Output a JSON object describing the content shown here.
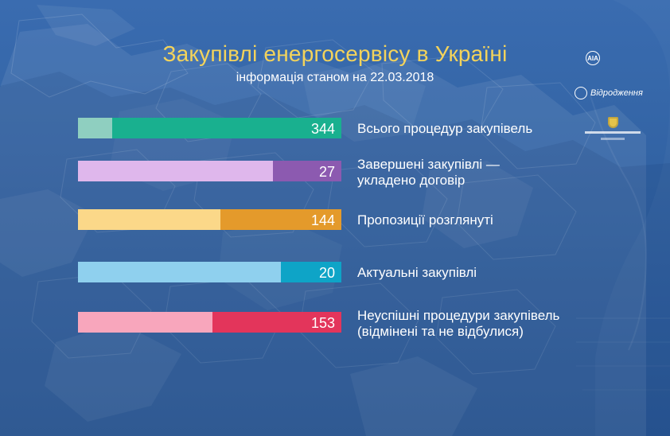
{
  "title": "Закупівлі енергосервісу в Україні",
  "subtitle": "інформація станом на 22.03.2018",
  "colors": {
    "background": "#2f5f9f",
    "title": "#f3d35b",
    "text": "#ffffff"
  },
  "chart_data": {
    "type": "bar",
    "orientation": "horizontal",
    "title": "Закупівлі енергосервісу в Україні",
    "xlabel": "",
    "ylabel": "",
    "xlim": [
      0,
      344
    ],
    "grid": false,
    "legend": "none",
    "categories": [
      [
        "Всього процедур закупівель"
      ],
      [
        "Завершені закупівлі —",
        "укладено договір"
      ],
      [
        "Пропозиції розглянуті"
      ],
      [
        "Актуальні закупівлі"
      ],
      [
        "Неуспішні процедури закупівель",
        "(відмінені та не відбулися)"
      ]
    ],
    "values": [
      344,
      27,
      144,
      20,
      153
    ],
    "colors": [
      {
        "main": "#19b08f",
        "light": "#8fcfc0"
      },
      {
        "main": "#8c5ab0",
        "light": "#dfb7ec"
      },
      {
        "main": "#e49a2b",
        "light": "#fbd889"
      },
      {
        "main": "#0ea4c7",
        "light": "#8fd0ee"
      },
      {
        "main": "#e3355b",
        "light": "#f8a6bc"
      }
    ]
  },
  "logos": {
    "logo1_mark": "AIA",
    "logo2_text": "Відродження",
    "logo2_icon": "foundation-logo-icon",
    "logo3_icon": "crest-icon"
  }
}
